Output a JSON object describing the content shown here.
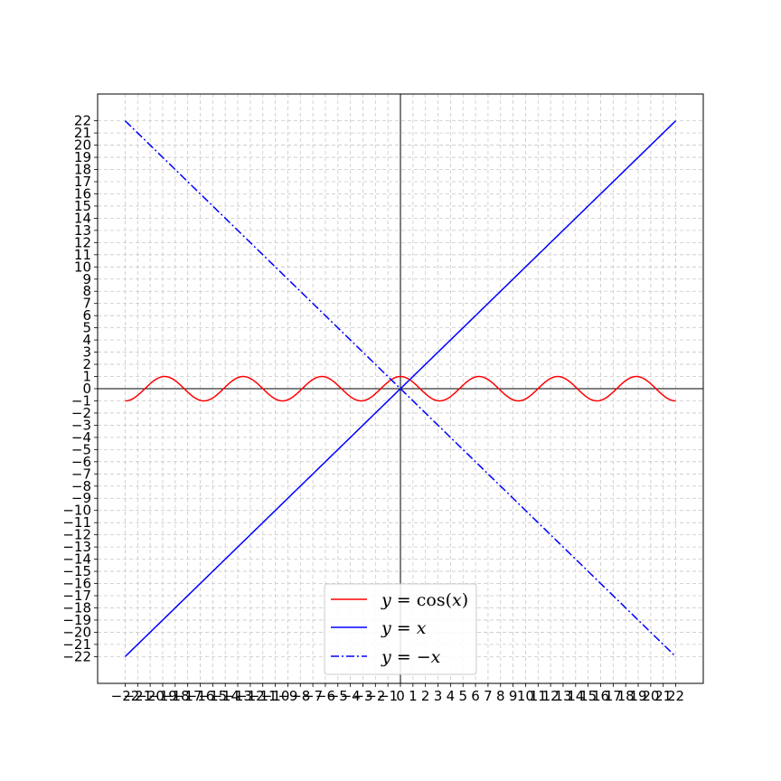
{
  "chart_data": {
    "type": "line",
    "title": "",
    "xlabel": "",
    "ylabel": "",
    "xlim": [
      -24.2,
      24.2
    ],
    "ylim": [
      -24.2,
      24.2
    ],
    "xticks": [
      -22,
      -21,
      -20,
      -19,
      -18,
      -17,
      -16,
      -15,
      -14,
      -13,
      -12,
      -11,
      -10,
      -9,
      -8,
      -7,
      -6,
      -5,
      -4,
      -3,
      -2,
      -1,
      0,
      1,
      2,
      3,
      4,
      5,
      6,
      7,
      8,
      9,
      10,
      11,
      12,
      13,
      14,
      15,
      16,
      17,
      18,
      19,
      20,
      21,
      22
    ],
    "yticks": [
      -22,
      -21,
      -20,
      -19,
      -18,
      -17,
      -16,
      -15,
      -14,
      -13,
      -12,
      -11,
      -10,
      -9,
      -8,
      -7,
      -6,
      -5,
      -4,
      -3,
      -2,
      -1,
      0,
      1,
      2,
      3,
      4,
      5,
      6,
      7,
      8,
      9,
      10,
      11,
      12,
      13,
      14,
      15,
      16,
      17,
      18,
      19,
      20,
      21,
      22
    ],
    "grid": true,
    "legend_position": "lower-center",
    "series": [
      {
        "name": "y = cos(x)",
        "function": "cos",
        "x_range": [
          -22,
          22
        ],
        "color": "#ff0000",
        "style": "solid"
      },
      {
        "name": "y = x",
        "function": "identity",
        "x_range": [
          -22,
          22
        ],
        "color": "#0000ff",
        "style": "solid"
      },
      {
        "name": "y = −x",
        "function": "negative",
        "x_range": [
          -22,
          22
        ],
        "color": "#0000ff",
        "style": "dashdot"
      }
    ]
  },
  "legend": {
    "items": [
      {
        "prefix": "y",
        "mid": " = cos(",
        "var": "x",
        "suffix": ")"
      },
      {
        "prefix": "y",
        "mid": " = ",
        "var": "x",
        "suffix": ""
      },
      {
        "prefix": "y",
        "mid": " = −",
        "var": "x",
        "suffix": ""
      }
    ]
  }
}
